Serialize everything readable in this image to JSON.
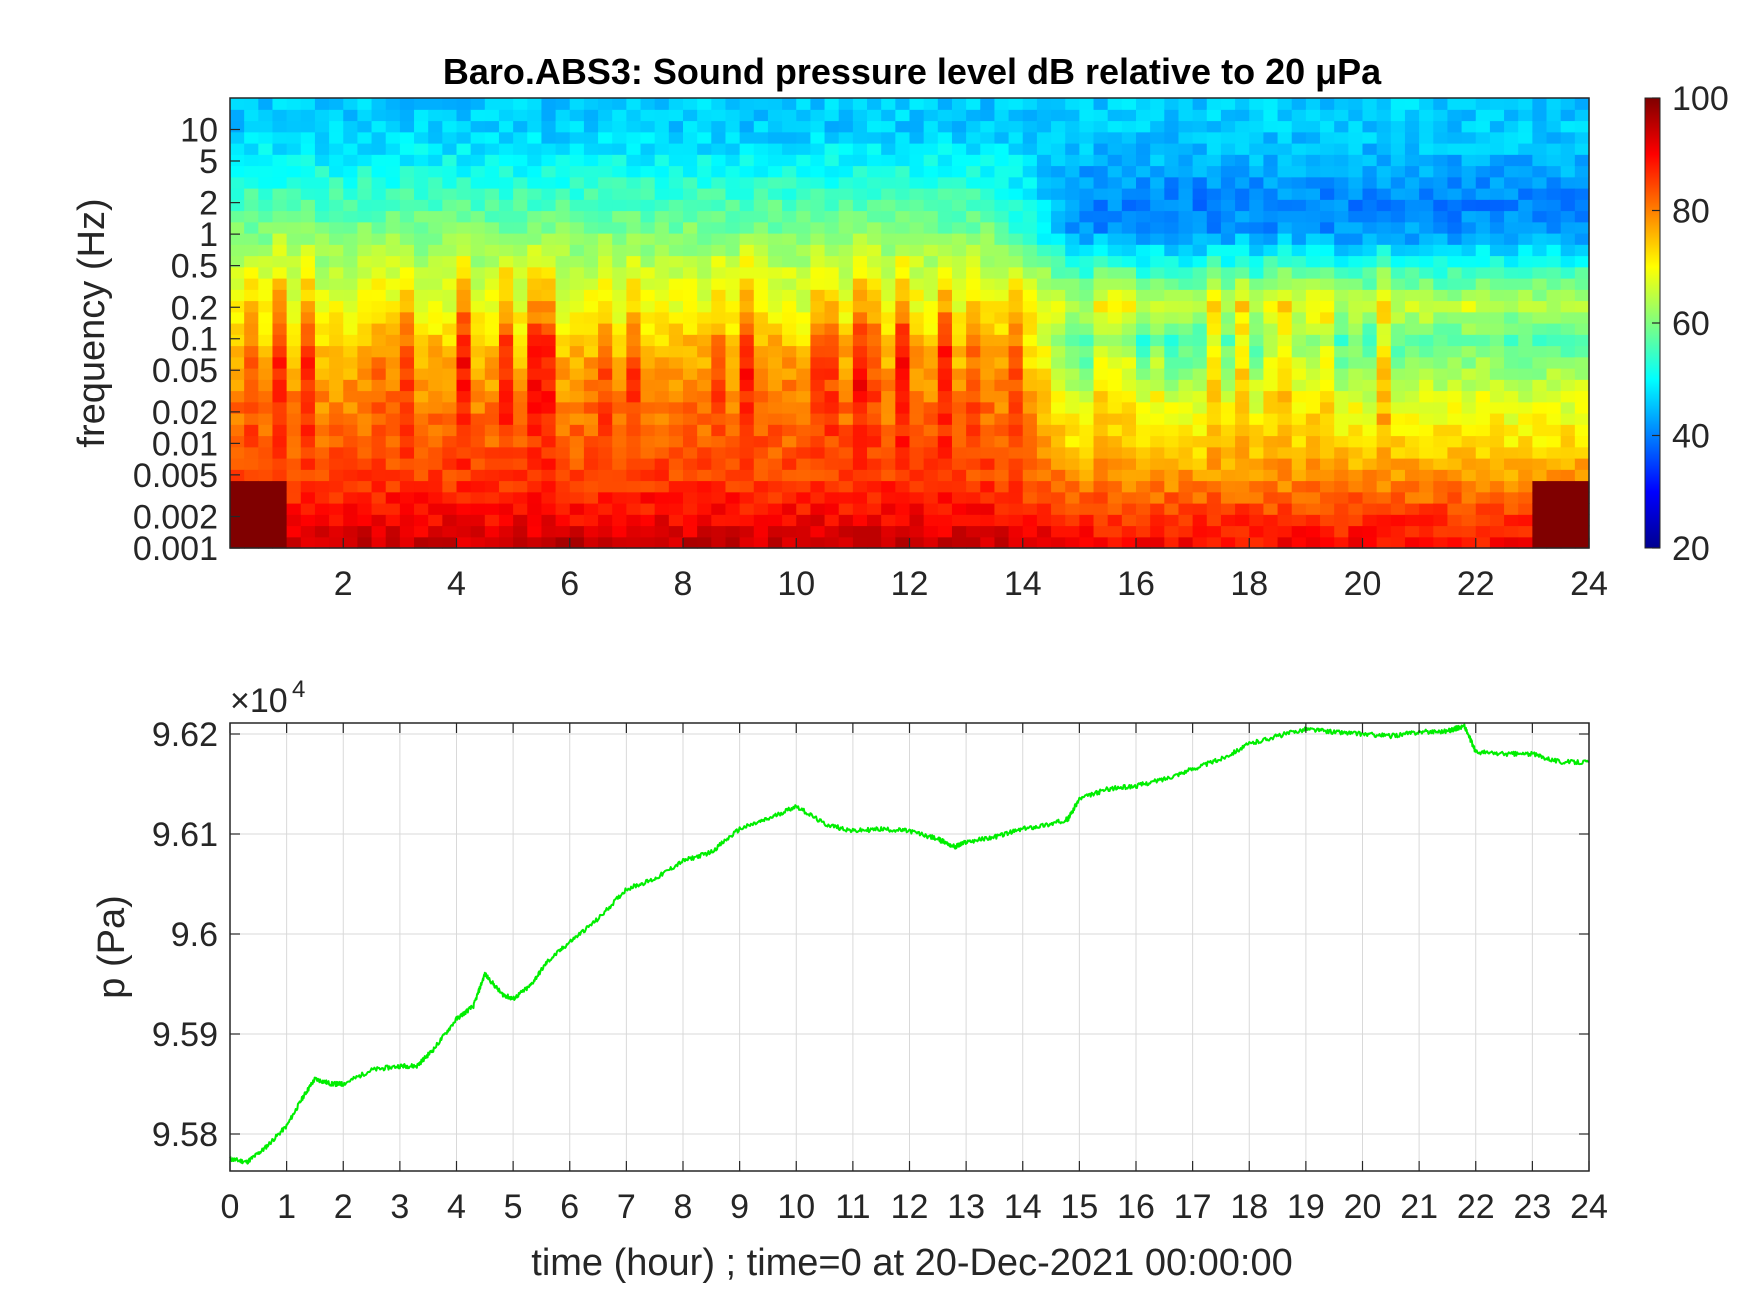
{
  "figure_title": "Baro.ABS3: Sound pressure level dB relative to 20 μPa",
  "colors": {
    "pressure_line": "#00ee00",
    "axes": "#262626",
    "grid": "#d9d9d9",
    "colormap": "jet"
  },
  "chart_data": [
    {
      "type": "heatmap",
      "title": "Baro.ABS3: Sound pressure level dB relative to 20 μPa",
      "ylabel": "frequency (Hz)",
      "xlabel": "",
      "xlim": [
        0,
        24
      ],
      "ylim": [
        0.001,
        20
      ],
      "y_scale": "log",
      "x_ticks": [
        "2",
        "4",
        "6",
        "8",
        "10",
        "12",
        "14",
        "16",
        "18",
        "20",
        "22",
        "24"
      ],
      "y_ticks": [
        "10",
        "5",
        "2",
        "1",
        "0.5",
        "0.2",
        "0.1",
        "0.05",
        "0.02",
        "0.01",
        "0.005",
        "0.002",
        "0.001"
      ],
      "colorbar": {
        "colormap": "jet",
        "range": [
          20,
          100
        ],
        "ticks": [
          "100",
          "80",
          "60",
          "40",
          "20"
        ]
      },
      "grid": false,
      "description_values": {
        "frequency_bands_hz": [
          0.001,
          0.002,
          0.005,
          0.01,
          0.02,
          0.05,
          0.1,
          0.2,
          0.5,
          1,
          2,
          5,
          10,
          20
        ],
        "level_db_by_band_hours_0_14": [
          95,
          90,
          85,
          82,
          80,
          76,
          72,
          68,
          64,
          60,
          56,
          50,
          46
        ],
        "level_db_by_band_hours_14_24": [
          90,
          86,
          78,
          72,
          68,
          60,
          54,
          64,
          52,
          42,
          40,
          44,
          46
        ]
      }
    },
    {
      "type": "line",
      "title": "",
      "xlabel": "time (hour) ; time=0 at 20-Dec-2021 00:00:00",
      "ylabel": "p (Pa)",
      "y_multiplier": "×10^4",
      "xlim": [
        0,
        24
      ],
      "ylim": [
        9.5763,
        9.6211
      ],
      "x_ticks": [
        "0",
        "1",
        "2",
        "3",
        "4",
        "5",
        "6",
        "7",
        "8",
        "9",
        "10",
        "11",
        "12",
        "13",
        "14",
        "15",
        "16",
        "17",
        "18",
        "19",
        "20",
        "21",
        "22",
        "23",
        "24"
      ],
      "y_ticks": [
        "9.58",
        "9.59",
        "9.6",
        "9.61",
        "9.62"
      ],
      "grid": true,
      "series": [
        {
          "x": [
            0,
            0.3,
            0.6,
            1.0,
            1.3,
            1.5,
            1.8,
            2.0,
            2.5,
            3.0,
            3.3,
            3.6,
            4.0,
            4.3,
            4.5,
            4.8,
            5.0,
            5.3,
            5.6,
            6.0,
            6.5,
            7.0,
            7.5,
            8.0,
            8.5,
            9.0,
            9.5,
            10.0,
            10.5,
            11.0,
            11.5,
            12.0,
            12.5,
            12.8,
            13.0,
            13.5,
            14.0,
            14.5,
            14.8,
            15.0,
            15.5,
            16.0,
            16.5,
            17.0,
            17.5,
            18.0,
            18.5,
            19.0,
            19.5,
            20.0,
            20.5,
            21.0,
            21.5,
            21.8,
            22.0,
            22.5,
            23.0,
            23.5,
            24.0
          ],
          "y": [
            9.5775,
            9.5772,
            9.5785,
            9.5808,
            9.5838,
            9.5855,
            9.585,
            9.585,
            9.5864,
            9.5868,
            9.5868,
            9.5885,
            9.5915,
            9.5928,
            9.596,
            9.594,
            9.5935,
            9.5948,
            9.5972,
            9.5992,
            9.6015,
            9.6045,
            9.6055,
            9.6073,
            9.6082,
            9.6105,
            9.6115,
            9.6128,
            9.611,
            9.6103,
            9.6105,
            9.6103,
            9.6095,
            9.6087,
            9.6092,
            9.6097,
            9.6105,
            9.611,
            9.6115,
            9.6135,
            9.6145,
            9.6148,
            9.6155,
            9.6165,
            9.6175,
            9.619,
            9.6198,
            9.6205,
            9.6202,
            9.62,
            9.6198,
            9.6202,
            9.6203,
            9.6208,
            9.6182,
            9.618,
            9.618,
            9.6172,
            9.6172
          ]
        }
      ]
    }
  ]
}
